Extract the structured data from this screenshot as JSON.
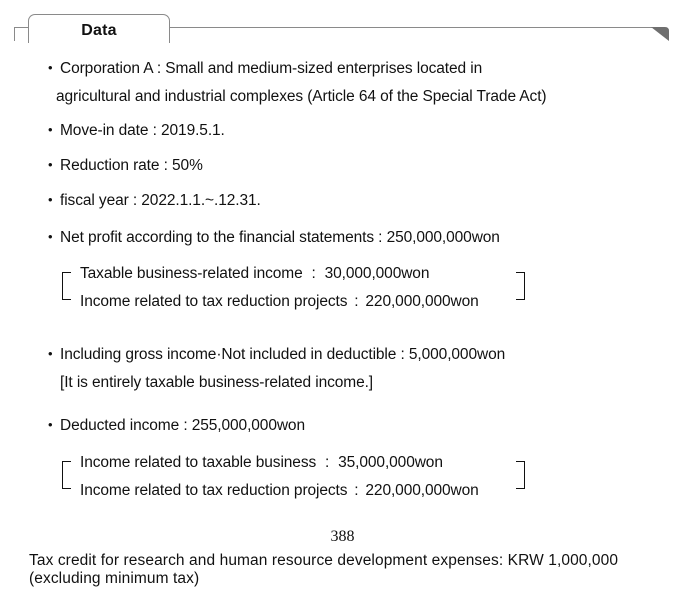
{
  "header": {
    "title": "Data"
  },
  "items": [
    {
      "line1": "Corporation A : Small and medium-sized enterprises located in",
      "line2": "agricultural and industrial complexes (Article 64 of the Special Trade Act)"
    },
    {
      "text": "Move-in date : 2019.5.1."
    },
    {
      "text": "Reduction rate : 50%"
    },
    {
      "text": "fiscal year : 2022.1.1.~.12.31."
    },
    {
      "text": "Net profit according to the financial statements : 250,000,000won",
      "breakdown": [
        {
          "label": "Taxable business-related income",
          "sep": ":",
          "value": "30,000,000won"
        },
        {
          "label": "Income related to tax reduction projects",
          "sep": ":",
          "value": "220,000,000won"
        }
      ]
    },
    {
      "text": "Including gross income·Not included in deductible : 5,000,000won",
      "note": "[It is entirely taxable business-related income.]"
    },
    {
      "text": "Deducted income : 255,000,000won",
      "breakdown": [
        {
          "label": "Income related to taxable business",
          "sep": ":",
          "value": "35,000,000won"
        },
        {
          "label": "Income related to tax reduction projects",
          "sep": ":",
          "value": "220,000,000won"
        }
      ]
    }
  ],
  "page_number": "388",
  "footer": {
    "line1": "Tax credit for research and human resource development expenses: KRW 1,000,000",
    "line2": "(excluding minimum tax)"
  }
}
